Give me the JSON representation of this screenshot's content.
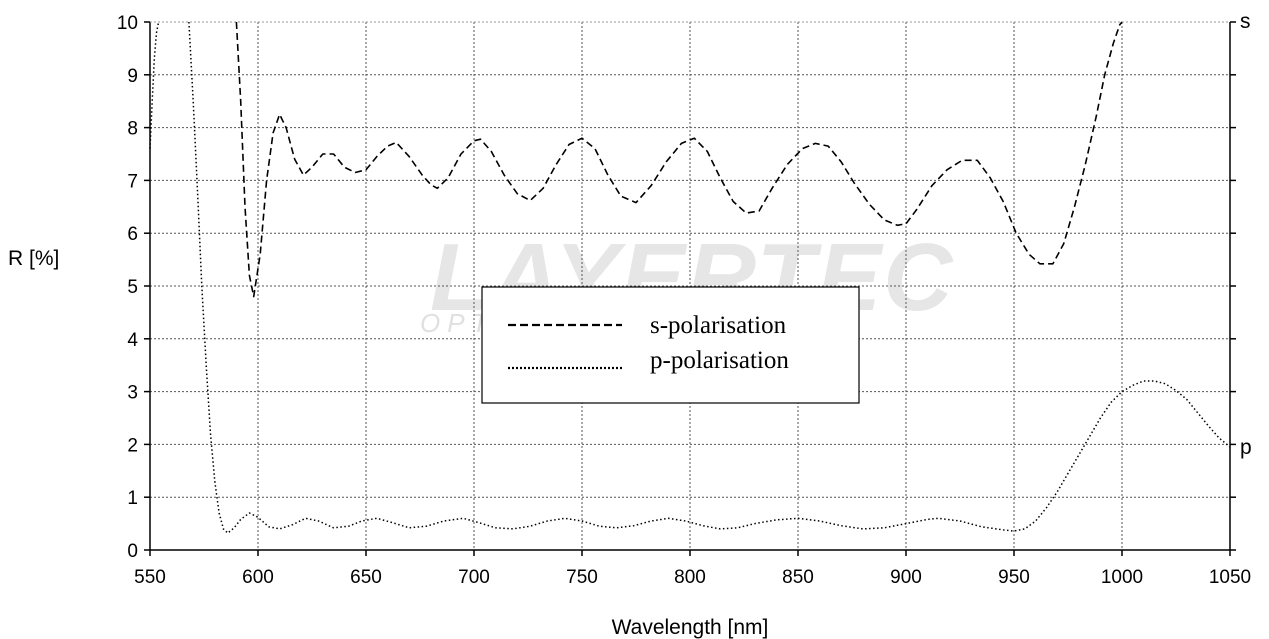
{
  "chart_data": {
    "type": "line",
    "xlabel": "Wavelength [nm]",
    "ylabel": "R [%]",
    "xlim": [
      550,
      1050
    ],
    "ylim": [
      0,
      10
    ],
    "xticks": [
      "550",
      "600",
      "650",
      "700",
      "750",
      "800",
      "850",
      "900",
      "950",
      "1000",
      "1050"
    ],
    "yticks": [
      "0",
      "1",
      "2",
      "3",
      "4",
      "5",
      "6",
      "7",
      "8",
      "9",
      "10"
    ],
    "grid": true,
    "legend_position": "center",
    "watermark": "LAYERTEC",
    "watermark_sub": "OPTICAL COATINGS",
    "series": [
      {
        "name": "s-polarisation",
        "end_label": "s",
        "style": "dashed",
        "x": [
          590,
          592,
          594,
          596,
          598,
          601,
          604,
          607,
          610,
          613,
          617,
          621,
          625,
          630,
          635,
          640,
          645,
          650,
          655,
          660,
          664,
          670,
          676,
          680,
          683,
          688,
          694,
          700,
          703,
          708,
          714,
          720,
          726,
          732,
          738,
          744,
          750,
          756,
          762,
          768,
          775,
          782,
          789,
          796,
          802,
          808,
          814,
          820,
          826,
          832,
          838,
          845,
          852,
          858,
          864,
          870,
          876,
          883,
          890,
          896,
          900,
          905,
          912,
          919,
          926,
          933,
          939,
          945,
          951,
          957,
          962,
          968,
          973,
          978,
          983,
          988,
          992,
          996,
          999,
          1000
        ],
        "y": [
          10,
          8.5,
          6.5,
          5.2,
          4.8,
          5.6,
          7.0,
          7.9,
          8.25,
          8.0,
          7.4,
          7.1,
          7.25,
          7.5,
          7.5,
          7.25,
          7.15,
          7.2,
          7.45,
          7.65,
          7.72,
          7.45,
          7.1,
          6.92,
          6.85,
          7.05,
          7.5,
          7.75,
          7.78,
          7.55,
          7.1,
          6.75,
          6.62,
          6.85,
          7.3,
          7.68,
          7.8,
          7.6,
          7.1,
          6.7,
          6.58,
          6.9,
          7.35,
          7.7,
          7.8,
          7.55,
          7.05,
          6.6,
          6.38,
          6.42,
          6.85,
          7.3,
          7.6,
          7.7,
          7.65,
          7.35,
          6.95,
          6.55,
          6.25,
          6.15,
          6.18,
          6.45,
          6.9,
          7.2,
          7.38,
          7.38,
          7.05,
          6.6,
          6.0,
          5.6,
          5.42,
          5.42,
          5.8,
          6.5,
          7.3,
          8.2,
          9.0,
          9.6,
          9.95,
          10
        ]
      },
      {
        "name": "p-polarisation",
        "end_label": "p",
        "style": "dotted",
        "x": [
          568,
          570,
          572,
          574,
          576,
          578,
          580,
          582,
          584,
          586,
          589,
          592,
          596,
          600,
          605,
          610,
          616,
          622,
          628,
          635,
          642,
          648,
          655,
          662,
          670,
          678,
          686,
          695,
          702,
          710,
          718,
          726,
          734,
          742,
          750,
          758,
          766,
          774,
          782,
          790,
          798,
          806,
          814,
          822,
          830,
          840,
          850,
          860,
          870,
          880,
          890,
          900,
          910,
          915,
          925,
          935,
          945,
          950,
          955,
          960,
          965,
          970,
          975,
          980,
          985,
          990,
          995,
          1000,
          1005,
          1010,
          1015,
          1020,
          1025,
          1030,
          1035,
          1040,
          1045,
          1050
        ],
        "y": [
          10,
          8.5,
          6.8,
          5.0,
          3.5,
          2.2,
          1.3,
          0.7,
          0.4,
          0.32,
          0.42,
          0.58,
          0.7,
          0.62,
          0.44,
          0.4,
          0.48,
          0.6,
          0.55,
          0.42,
          0.45,
          0.55,
          0.6,
          0.52,
          0.42,
          0.45,
          0.55,
          0.6,
          0.52,
          0.42,
          0.4,
          0.45,
          0.55,
          0.6,
          0.55,
          0.45,
          0.42,
          0.46,
          0.55,
          0.6,
          0.55,
          0.46,
          0.4,
          0.42,
          0.5,
          0.57,
          0.6,
          0.55,
          0.46,
          0.4,
          0.42,
          0.5,
          0.58,
          0.6,
          0.55,
          0.44,
          0.38,
          0.36,
          0.4,
          0.55,
          0.8,
          1.1,
          1.45,
          1.8,
          2.15,
          2.5,
          2.8,
          3.0,
          3.12,
          3.2,
          3.2,
          3.15,
          3.02,
          2.85,
          2.6,
          2.35,
          2.12,
          1.95
        ]
      },
      {
        "name": "",
        "style": "dotted",
        "x": [
          550,
          551,
          552,
          553,
          554
        ],
        "y": [
          7.6,
          8.5,
          9.3,
          9.8,
          10
        ]
      }
    ]
  }
}
